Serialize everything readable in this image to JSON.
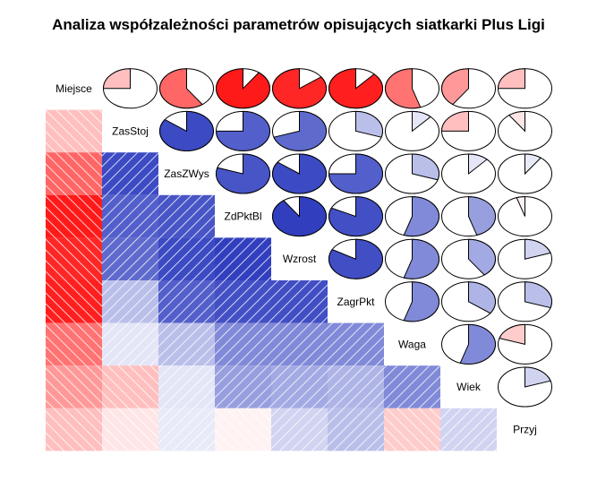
{
  "chart_data": {
    "type": "heatmap",
    "subtype": "corrgram",
    "title": "Analiza współzależności parametrów opisujących siatkarki Plus Ligi",
    "variables": [
      "Miejsce",
      "ZasStoj",
      "ZasZWys",
      "ZdPktBl",
      "Wzrost",
      "ZagrPkt",
      "Waga",
      "Wiek",
      "Przyj"
    ],
    "lower_panel": "shade",
    "upper_panel": "pie",
    "positive_color": "#1a2ab8",
    "negative_color": "#ff0000",
    "correlations": [
      [
        1.0,
        -0.25,
        -0.6,
        -0.9,
        -0.85,
        -0.88,
        -0.55,
        -0.4,
        -0.25
      ],
      [
        -0.25,
        1.0,
        0.85,
        0.75,
        0.7,
        0.3,
        0.12,
        -0.25,
        -0.1
      ],
      [
        -0.6,
        0.85,
        1.0,
        0.8,
        0.85,
        0.75,
        0.3,
        0.12,
        0.1
      ],
      [
        -0.9,
        0.75,
        0.8,
        1.0,
        0.9,
        0.82,
        0.55,
        0.45,
        -0.05
      ],
      [
        -0.85,
        0.7,
        0.85,
        0.9,
        1.0,
        0.83,
        0.55,
        0.4,
        0.2
      ],
      [
        -0.88,
        0.3,
        0.75,
        0.82,
        0.83,
        1.0,
        0.55,
        0.35,
        0.3
      ],
      [
        -0.55,
        0.12,
        0.3,
        0.55,
        0.55,
        0.55,
        1.0,
        0.55,
        -0.2
      ],
      [
        -0.4,
        -0.25,
        0.12,
        0.45,
        0.4,
        0.35,
        0.55,
        1.0,
        0.2
      ],
      [
        -0.25,
        -0.1,
        0.1,
        -0.05,
        0.2,
        0.3,
        -0.2,
        0.2,
        1.0
      ]
    ]
  }
}
